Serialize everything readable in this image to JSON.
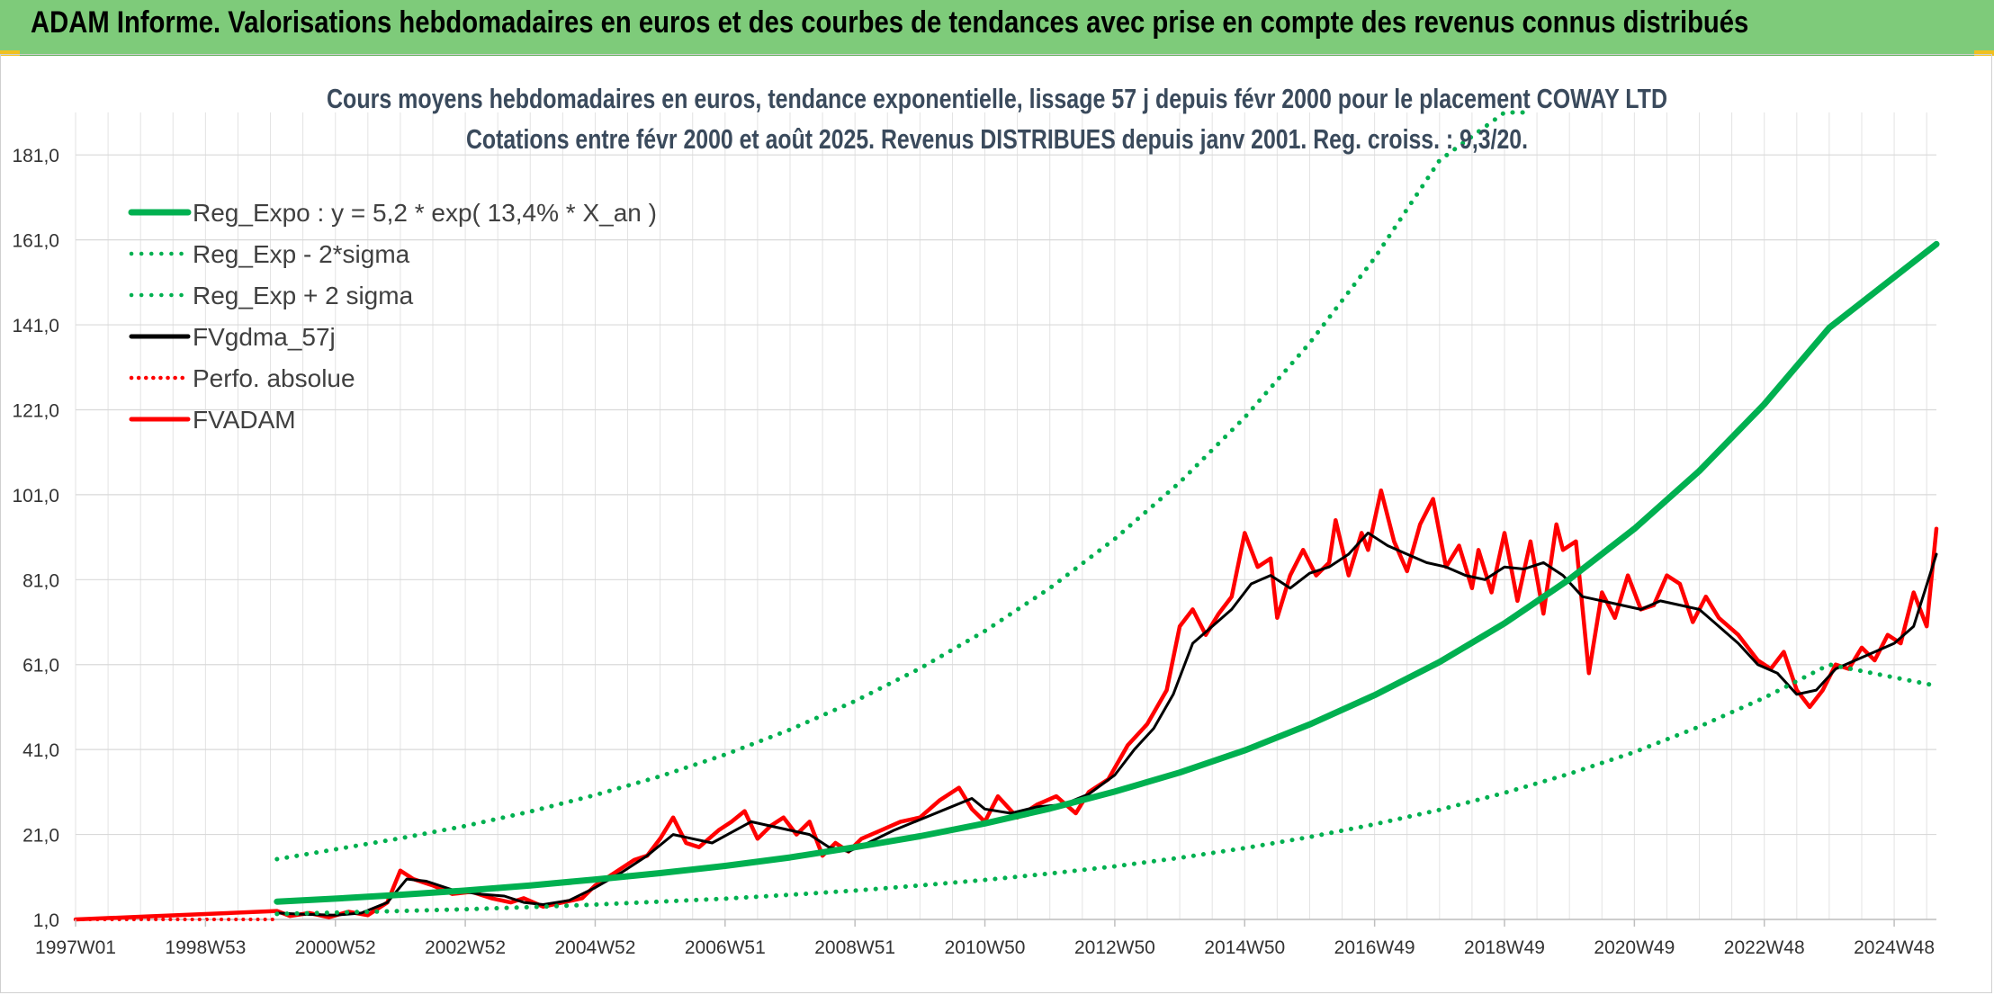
{
  "header": {
    "banner_title": "ADAM Informe. Valorisations hebdomadaires en euros et des courbes de tendances avec prise en compte des revenus connus distribués"
  },
  "chart_data": {
    "type": "line",
    "title": "Cours moyens hebdomadaires en euros, tendance exponentielle, lissage 57 j depuis févr 2000 pour le placement COWAY LTD",
    "subtitle": "Cotations entre févr 2000 et août 2025. Revenus DISTRIBUES depuis janv 2001. Reg. croiss. : 9,3/20.",
    "x_axis": {
      "unit": "year",
      "range": [
        1997.0,
        2025.65
      ],
      "tick_labels": [
        "1997W01",
        "1998W53",
        "2000W52",
        "2002W52",
        "2004W52",
        "2006W51",
        "2008W51",
        "2010W50",
        "2012W50",
        "2014W50",
        "2016W49",
        "2018W49",
        "2020W49",
        "2022W48",
        "2024W48"
      ],
      "tick_positions": [
        1997.0,
        1999.0,
        2001.0,
        2003.0,
        2005.0,
        2007.0,
        2009.0,
        2011.0,
        2013.0,
        2015.0,
        2017.0,
        2019.0,
        2021.0,
        2023.0,
        2025.0
      ]
    },
    "y_axis": {
      "range": [
        1.0,
        191.0
      ],
      "ticks": [
        1.0,
        21.0,
        41.0,
        61.0,
        81.0,
        101.0,
        121.0,
        141.0,
        161.0,
        181.0
      ],
      "tick_labels": [
        "1,0",
        "21,0",
        "41,0",
        "61,0",
        "81,0",
        "101,0",
        "121,0",
        "141,0",
        "161,0",
        "181,0"
      ],
      "grid": true
    },
    "legend_position": "top-left",
    "series": [
      {
        "name": "Reg_Expo : y = 5,2 * exp( 13,4% *  X_an )",
        "color": "#00b050",
        "style": "solid",
        "x": [
          2000.1,
          2001,
          2002,
          2003,
          2004,
          2005,
          2006,
          2007,
          2008,
          2009,
          2010,
          2011,
          2012,
          2013,
          2014,
          2015,
          2016,
          2017,
          2018,
          2019,
          2020,
          2021,
          2022,
          2023,
          2024,
          2025.65
        ],
        "y": [
          5.2,
          5.9,
          6.8,
          7.8,
          9.0,
          10.4,
          11.9,
          13.6,
          15.6,
          18.0,
          20.6,
          23.6,
          27.1,
          31.1,
          35.6,
          40.8,
          46.9,
          53.8,
          61.6,
          70.7,
          81.1,
          93.0,
          106.6,
          122.3,
          140.3,
          160.0
        ]
      },
      {
        "name": "Reg_Exp - 2*sigma",
        "color": "#00b050",
        "style": "dotted",
        "x": [
          2000.1,
          2001,
          2002,
          2003,
          2004,
          2005,
          2006,
          2007,
          2008,
          2009,
          2010,
          2011,
          2012,
          2013,
          2014,
          2015,
          2016,
          2017,
          2018,
          2019,
          2020,
          2021,
          2022,
          2023,
          2024,
          2025.65
        ],
        "y": [
          2.3,
          2.6,
          3.0,
          3.4,
          3.9,
          4.5,
          5.2,
          5.9,
          6.8,
          7.8,
          9.0,
          10.3,
          11.8,
          13.5,
          15.5,
          17.8,
          20.4,
          23.4,
          26.8,
          30.8,
          35.3,
          40.4,
          46.4,
          53.2,
          61.0,
          56.0
        ]
      },
      {
        "name": "Reg_Exp + 2 sigma",
        "color": "#00b050",
        "style": "dotted",
        "x": [
          2000.1,
          2001,
          2002,
          2003,
          2004,
          2005,
          2006,
          2007,
          2008,
          2009,
          2010,
          2011,
          2012,
          2013,
          2014,
          2015,
          2016,
          2017,
          2018,
          2019,
          2019.35
        ],
        "y": [
          15.2,
          17.5,
          20.1,
          23.0,
          26.4,
          30.3,
          34.7,
          39.8,
          45.7,
          52.4,
          60.1,
          68.9,
          79.0,
          90.6,
          103.9,
          119.2,
          136.7,
          156.7,
          179.7,
          191.0,
          191.0
        ]
      },
      {
        "name": "FVgdma_57j",
        "color": "#000000",
        "style": "solid",
        "x": [
          2000.1,
          2000.5,
          2001.0,
          2001.4,
          2001.8,
          2002.1,
          2002.4,
          2002.8,
          2003.2,
          2003.6,
          2003.9,
          2004.2,
          2004.6,
          2005.0,
          2005.4,
          2005.8,
          2006.2,
          2006.5,
          2006.8,
          2007.1,
          2007.4,
          2007.7,
          2008.0,
          2008.3,
          2008.6,
          2008.9,
          2009.2,
          2009.6,
          2010.0,
          2010.4,
          2010.8,
          2011.0,
          2011.4,
          2011.8,
          2012.2,
          2012.6,
          2013.0,
          2013.3,
          2013.6,
          2013.9,
          2014.2,
          2014.5,
          2014.8,
          2015.1,
          2015.4,
          2015.7,
          2016.0,
          2016.3,
          2016.6,
          2016.9,
          2017.2,
          2017.5,
          2017.8,
          2018.1,
          2018.4,
          2018.7,
          2019.0,
          2019.3,
          2019.6,
          2019.9,
          2020.2,
          2020.5,
          2020.8,
          2021.1,
          2021.4,
          2021.7,
          2022.0,
          2022.3,
          2022.6,
          2022.9,
          2023.2,
          2023.5,
          2023.8,
          2024.1,
          2024.4,
          2024.7,
          2025.0,
          2025.3,
          2025.65
        ],
        "y": [
          2.5,
          2.2,
          2.0,
          2.5,
          5.0,
          10.5,
          10.0,
          8.0,
          7.0,
          6.5,
          5.0,
          4.5,
          5.5,
          8.5,
          12.0,
          16.0,
          21.0,
          20.0,
          19.0,
          21.5,
          24.0,
          23.0,
          22.0,
          21.0,
          18.0,
          17.0,
          19.0,
          22.0,
          24.5,
          27.0,
          29.5,
          27.0,
          26.0,
          27.5,
          28.0,
          30.5,
          35.0,
          41.0,
          46.0,
          54.0,
          66.0,
          70.0,
          74.0,
          80.0,
          82.0,
          79.0,
          82.5,
          84.0,
          87.0,
          92.0,
          89.0,
          87.0,
          85.0,
          84.0,
          82.0,
          81.0,
          84.0,
          83.5,
          85.0,
          82.0,
          77.0,
          76.0,
          75.0,
          74.0,
          76.0,
          75.0,
          74.0,
          70.0,
          66.0,
          61.0,
          59.0,
          54.0,
          55.0,
          60.0,
          62.0,
          64.0,
          66.0,
          70.0,
          87.0
        ]
      },
      {
        "name": "Perfo. absolue",
        "color": "#ff0000",
        "style": "dotted",
        "x": [
          1997.0,
          2000.1
        ],
        "y": [
          1.0,
          1.0
        ]
      },
      {
        "name": "FVADAM",
        "color": "#ff0000",
        "style": "solid",
        "x": [
          1997.0,
          2000.1,
          2000.3,
          2000.6,
          2000.9,
          2001.2,
          2001.5,
          2001.8,
          2002.0,
          2002.2,
          2002.5,
          2002.8,
          2003.1,
          2003.4,
          2003.7,
          2003.9,
          2004.2,
          2004.5,
          2004.8,
          2005.0,
          2005.3,
          2005.6,
          2005.8,
          2006.0,
          2006.2,
          2006.4,
          2006.6,
          2006.9,
          2007.1,
          2007.3,
          2007.5,
          2007.7,
          2007.9,
          2008.1,
          2008.3,
          2008.5,
          2008.7,
          2008.9,
          2009.1,
          2009.4,
          2009.7,
          2010.0,
          2010.3,
          2010.6,
          2010.8,
          2011.0,
          2011.2,
          2011.5,
          2011.8,
          2012.1,
          2012.4,
          2012.6,
          2012.9,
          2013.2,
          2013.5,
          2013.8,
          2014.0,
          2014.2,
          2014.4,
          2014.6,
          2014.8,
          2015.0,
          2015.2,
          2015.4,
          2015.5,
          2015.7,
          2015.9,
          2016.1,
          2016.3,
          2016.4,
          2016.6,
          2016.8,
          2016.9,
          2017.1,
          2017.3,
          2017.5,
          2017.7,
          2017.9,
          2018.1,
          2018.3,
          2018.5,
          2018.6,
          2018.8,
          2019.0,
          2019.2,
          2019.4,
          2019.6,
          2019.8,
          2019.9,
          2020.1,
          2020.3,
          2020.5,
          2020.7,
          2020.9,
          2021.1,
          2021.3,
          2021.5,
          2021.7,
          2021.9,
          2022.1,
          2022.3,
          2022.6,
          2022.9,
          2023.1,
          2023.3,
          2023.5,
          2023.7,
          2023.9,
          2024.1,
          2024.3,
          2024.5,
          2024.7,
          2024.9,
          2025.1,
          2025.3,
          2025.5,
          2025.65
        ],
        "y": [
          1.0,
          3.0,
          1.8,
          2.5,
          1.5,
          2.8,
          2.0,
          5.0,
          12.5,
          10.5,
          9.0,
          7.0,
          7.5,
          6.0,
          5.0,
          6.0,
          4.0,
          5.0,
          6.0,
          9.0,
          12.0,
          15.0,
          16.0,
          20.0,
          25.0,
          19.0,
          18.0,
          22.0,
          24.0,
          26.5,
          20.0,
          23.0,
          25.0,
          21.0,
          24.0,
          16.0,
          19.0,
          17.0,
          20.0,
          22.0,
          24.0,
          25.0,
          29.0,
          32.0,
          27.0,
          24.0,
          30.0,
          25.0,
          28.0,
          30.0,
          26.0,
          31.0,
          34.0,
          42.0,
          47.0,
          55.0,
          70.0,
          74.0,
          68.0,
          73.0,
          77.0,
          92.0,
          84.0,
          86.0,
          72.0,
          82.0,
          88.0,
          82.0,
          85.0,
          95.0,
          82.0,
          92.0,
          88.0,
          102.0,
          90.0,
          83.0,
          94.0,
          100.0,
          84.0,
          89.0,
          79.0,
          88.0,
          78.0,
          92.0,
          76.0,
          90.0,
          73.0,
          94.0,
          88.0,
          90.0,
          59.0,
          78.0,
          72.0,
          82.0,
          74.0,
          75.0,
          82.0,
          80.0,
          71.0,
          77.0,
          72.0,
          68.0,
          62.0,
          60.0,
          64.0,
          55.0,
          51.0,
          55.0,
          61.0,
          60.0,
          65.0,
          62.0,
          68.0,
          66.0,
          78.0,
          70.0,
          93.0
        ]
      }
    ]
  }
}
